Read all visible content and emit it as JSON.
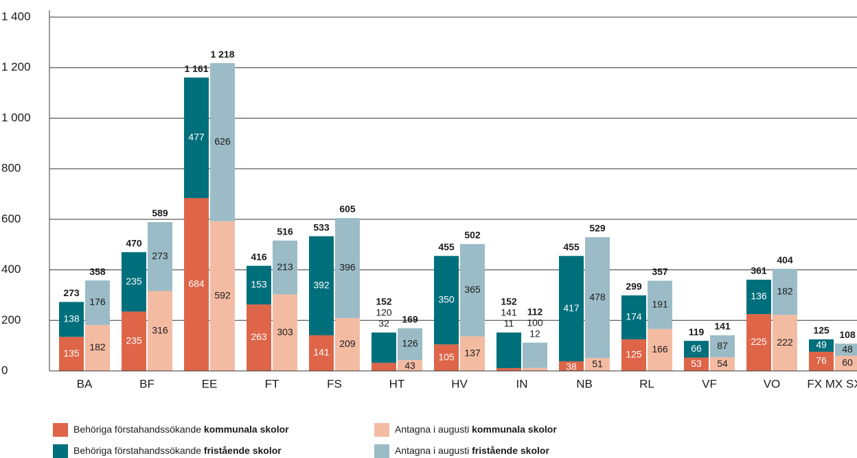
{
  "chart_data": {
    "type": "grouped_stacked_bar",
    "categories": [
      "BA",
      "BF",
      "EE",
      "FT",
      "FS",
      "HT",
      "HV",
      "IN",
      "NB",
      "RL",
      "VF",
      "VO",
      "FX MX SX"
    ],
    "ylim": [
      0,
      1400
    ],
    "yticks": [
      0,
      200,
      400,
      600,
      800,
      {
        "value": 1000,
        "label": "1 000"
      },
      {
        "value": 1200,
        "label": "1 200"
      },
      {
        "value": 1400,
        "label": "1 400"
      }
    ],
    "grid": true,
    "groups": [
      {
        "series": [
          {
            "name": "Behöriga förstahandssökande kommunala skolor",
            "color": "#de6548",
            "values": [
              135,
              235,
              684,
              263,
              141,
              32,
              105,
              11,
              38,
              125,
              53,
              225,
              76
            ]
          },
          {
            "name": "Behöriga förstahandssökande fristående skolor",
            "color": "#006f7c",
            "values": [
              138,
              235,
              477,
              153,
              392,
              120,
              350,
              141,
              417,
              174,
              66,
              136,
              49
            ]
          }
        ],
        "totals": {
          "values": [
            273,
            470,
            1161,
            416,
            533,
            152,
            455,
            152,
            455,
            299,
            119,
            361,
            125
          ],
          "value_labels": [
            "273",
            "470",
            "1 161",
            "416",
            "533",
            "152",
            "455",
            "152",
            "455",
            "299",
            "119",
            "361",
            "125"
          ]
        }
      },
      {
        "series": [
          {
            "name": "Antagna i augusti kommunala skolor",
            "color": "#f4bba3",
            "values": [
              182,
              316,
              592,
              303,
              209,
              43,
              137,
              12,
              51,
              166,
              54,
              222,
              60
            ]
          },
          {
            "name": "Antagna i augusti fristående skolor",
            "color": "#9bbcc6",
            "values": [
              176,
              273,
              626,
              213,
              396,
              126,
              365,
              100,
              478,
              191,
              87,
              182,
              48
            ]
          }
        ],
        "totals": {
          "values": [
            358,
            589,
            1218,
            516,
            605,
            169,
            502,
            112,
            529,
            357,
            141,
            404,
            108
          ],
          "value_labels": [
            "358",
            "589",
            "1 218",
            "516",
            "605",
            "169",
            "502",
            "112",
            "529",
            "357",
            "141",
            "404",
            "108"
          ]
        }
      }
    ]
  }
}
